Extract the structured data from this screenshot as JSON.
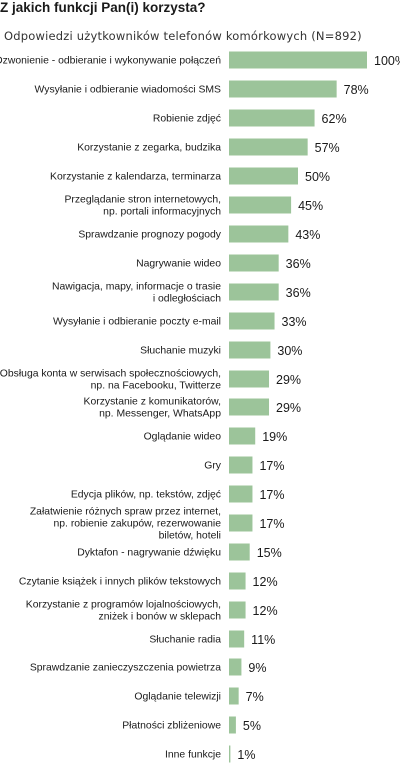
{
  "chart_data": {
    "type": "bar",
    "orientation": "horizontal",
    "title": "Z jakich funkcji Pan(i) korzysta?",
    "subtitle": "Odpowiedzi użytkowników telefonów komórkowych (N=892)",
    "xlim": [
      0,
      100
    ],
    "grid": false,
    "bar_color": "#9cc49a",
    "value_suffix": "%",
    "categories": [
      [
        "Dzwonienie - odbieranie i wykonywanie połączeń"
      ],
      [
        "Wysyłanie i odbieranie wiadomości SMS"
      ],
      [
        "Robienie zdjęć"
      ],
      [
        "Korzystanie z zegarka, budzika"
      ],
      [
        "Korzystanie z kalendarza, terminarza"
      ],
      [
        "Przeglądanie stron internetowych,",
        "np. portali informacyjnych"
      ],
      [
        "Sprawdzanie prognozy pogody"
      ],
      [
        "Nagrywanie wideo"
      ],
      [
        "Nawigacja, mapy, informacje o trasie",
        "i odległościach"
      ],
      [
        "Wysyłanie i odbieranie poczty e-mail"
      ],
      [
        "Słuchanie muzyki"
      ],
      [
        "Obsługa konta w serwisach społecznościowych,",
        "np. na Facebooku, Twitterze"
      ],
      [
        "Korzystanie z komunikatorów,",
        "np. Messenger, WhatsApp"
      ],
      [
        "Oglądanie wideo"
      ],
      [
        "Gry"
      ],
      [
        "Edycja plików, np. tekstów, zdjęć"
      ],
      [
        "Załatwienie różnych spraw przez internet,",
        "np. robienie zakupów, rezerwowanie",
        "biletów, hoteli"
      ],
      [
        "Dyktafon - nagrywanie dźwięku"
      ],
      [
        "Czytanie książek i innych plików tekstowych"
      ],
      [
        "Korzystanie z programów lojalnościowych,",
        "zniżek i bonów w sklepach"
      ],
      [
        "Słuchanie radia"
      ],
      [
        "Sprawdzanie zanieczyszczenia powietrza"
      ],
      [
        "Oglądanie telewizji"
      ],
      [
        "Płatności zbliżeniowe"
      ],
      [
        "Inne funkcje"
      ]
    ],
    "values": [
      100,
      78,
      62,
      57,
      50,
      45,
      43,
      36,
      36,
      33,
      30,
      29,
      29,
      19,
      17,
      17,
      17,
      15,
      12,
      12,
      11,
      9,
      7,
      5,
      1
    ]
  }
}
